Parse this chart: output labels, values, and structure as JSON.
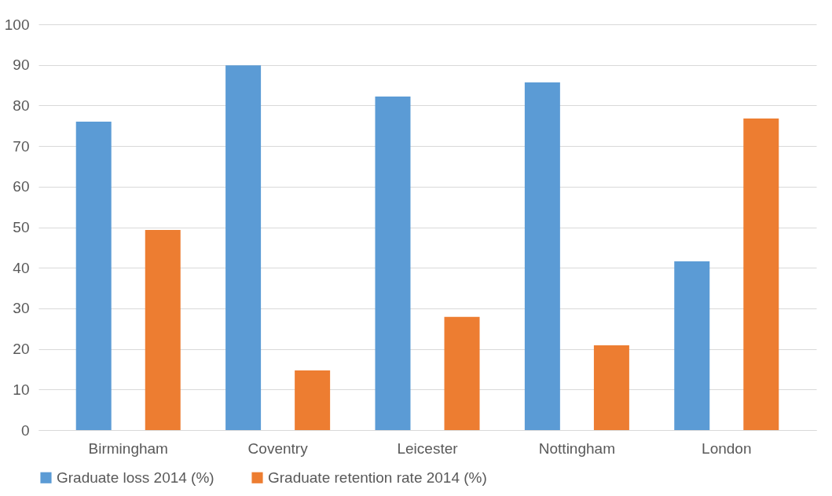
{
  "chart_data": {
    "type": "bar",
    "categories": [
      "Birmingham",
      "Coventry",
      "Leicester",
      "Nottingham",
      "London"
    ],
    "series": [
      {
        "name": "Graduate loss 2014  (%)",
        "color": "#5b9bd5",
        "values": [
          76.0,
          89.9,
          82.2,
          85.7,
          41.6
        ]
      },
      {
        "name": "Graduate retention rate 2014  (%)",
        "color": "#ed7d31",
        "values": [
          49.3,
          14.7,
          27.9,
          20.9,
          76.8
        ]
      }
    ],
    "ylim": [
      0,
      100
    ],
    "yticks": [
      0,
      10,
      20,
      30,
      40,
      50,
      60,
      70,
      80,
      90,
      100
    ],
    "grid": "y",
    "legend": "bottom"
  }
}
